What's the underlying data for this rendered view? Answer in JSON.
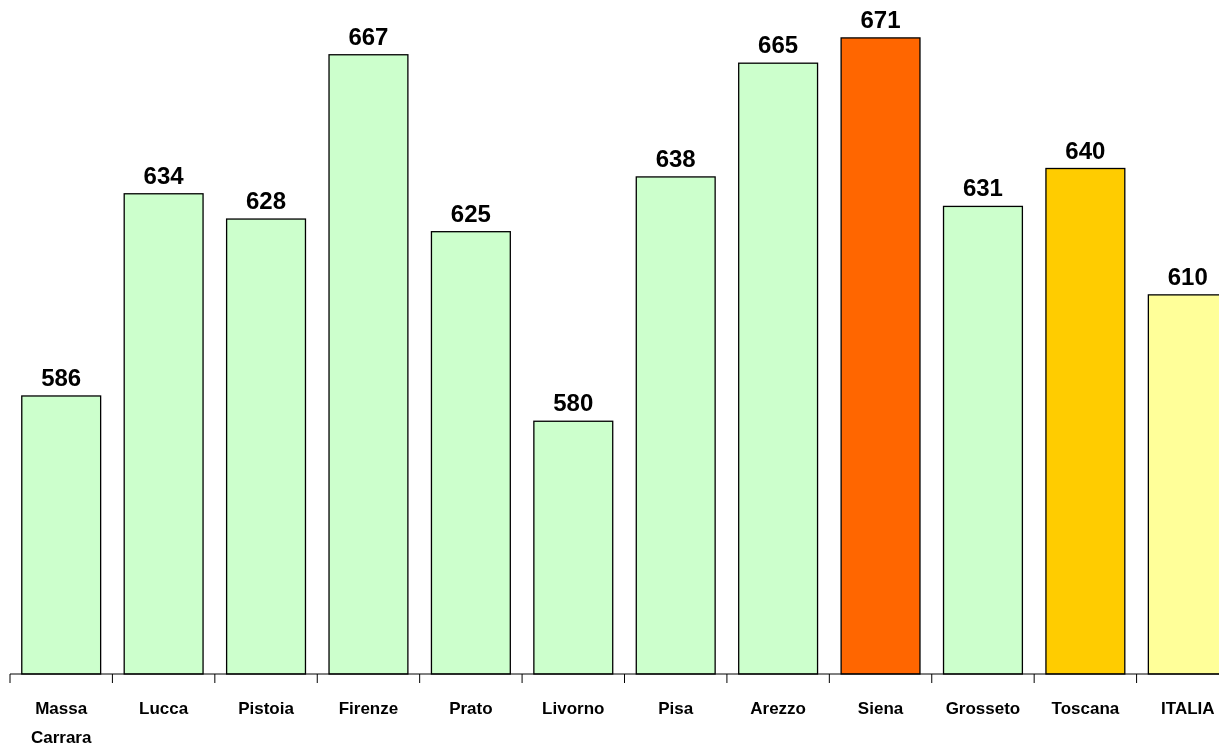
{
  "chart_data": {
    "type": "bar",
    "categories": [
      "Massa Carrara",
      "Lucca",
      "Pistoia",
      "Firenze",
      "Prato",
      "Livorno",
      "Pisa",
      "Arezzo",
      "Siena",
      "Grosseto",
      "Toscana",
      "ITALIA"
    ],
    "values": [
      586,
      634,
      628,
      667,
      625,
      580,
      638,
      665,
      671,
      631,
      640,
      610
    ],
    "colors": [
      "#ccffcc",
      "#ccffcc",
      "#ccffcc",
      "#ccffcc",
      "#ccffcc",
      "#ccffcc",
      "#ccffcc",
      "#ccffcc",
      "#ff6600",
      "#ccffcc",
      "#ffcc00",
      "#ffff99"
    ],
    "ylim": [
      520,
      680
    ],
    "tick_labels": "x",
    "data_labels": true
  }
}
